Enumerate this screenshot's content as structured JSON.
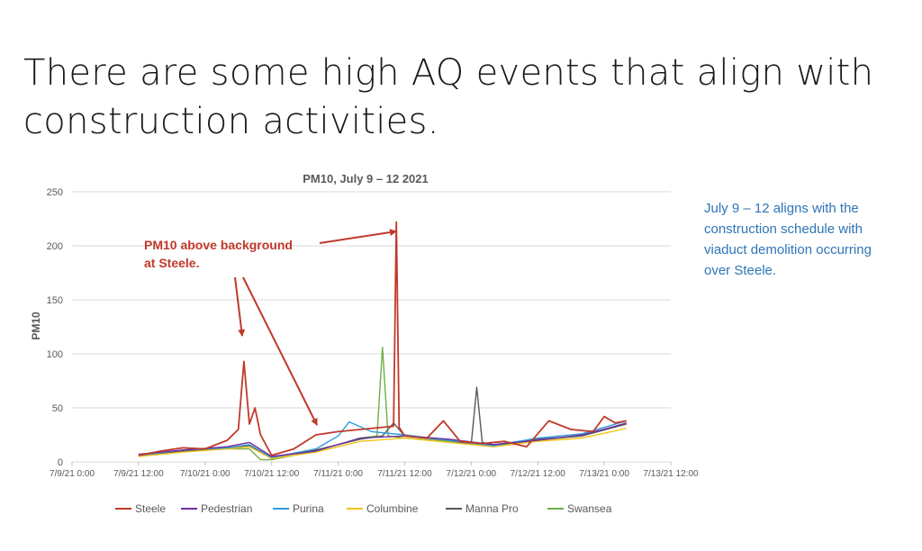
{
  "slide": {
    "title_lines": [
      "There are some high AQ events that align with",
      "construction activities."
    ],
    "note_lines": [
      "July 9 – 12 aligns with the",
      "construction schedule with",
      "viaduct demolition occurring",
      "over Steele."
    ],
    "note_color": "#2e75b6"
  },
  "annotation": {
    "lines": [
      "PM10 above background",
      "at Steele."
    ],
    "color": "#c0392b"
  },
  "chart_data": {
    "type": "line",
    "title": "PM10, July 9 – 12 2021",
    "ylabel": "PM10",
    "xlabel": "",
    "ylim": [
      0,
      250
    ],
    "yticks": [
      0,
      50,
      100,
      150,
      200,
      250
    ],
    "xlim": [
      "7/9/21 0:00",
      "7/13/21 12:00"
    ],
    "xticks": [
      "7/9/21 0:00",
      "7/9/21 12:00",
      "7/10/21 0:00",
      "7/10/21 12:00",
      "7/11/21 0:00",
      "7/11/21 12:00",
      "7/12/21 0:00",
      "7/12/21 12:00",
      "7/13/21 0:00",
      "7/13/21 12:00"
    ],
    "grid": true,
    "legend": "bottom",
    "series": [
      {
        "name": "Steele",
        "color": "#c0392b",
        "x": [
          "7/9/21 12:00",
          "7/9/21 16:00",
          "7/9/21 20:00",
          "7/10/21 0:00",
          "7/10/21 4:00",
          "7/10/21 6:00",
          "7/10/21 7:00",
          "7/10/21 8:00",
          "7/10/21 9:00",
          "7/10/21 10:00",
          "7/10/21 12:00",
          "7/10/21 16:00",
          "7/10/21 20:00",
          "7/11/21 0:00",
          "7/11/21 4:00",
          "7/11/21 8:00",
          "7/11/21 10:00",
          "7/11/21 10:30",
          "7/11/21 11:00",
          "7/11/21 12:00",
          "7/11/21 16:00",
          "7/11/21 19:00",
          "7/11/21 22:00",
          "7/12/21 2:00",
          "7/12/21 6:00",
          "7/12/21 10:00",
          "7/12/21 12:00",
          "7/12/21 14:00",
          "7/12/21 18:00",
          "7/12/21 22:00",
          "7/13/21 0:00",
          "7/13/21 2:00",
          "7/13/21 4:00"
        ],
        "y": [
          6,
          10,
          13,
          12,
          20,
          30,
          93,
          35,
          50,
          25,
          6,
          12,
          25,
          28,
          30,
          32,
          33,
          222,
          32,
          24,
          22,
          38,
          19,
          17,
          19,
          14,
          26,
          38,
          30,
          28,
          42,
          36,
          38
        ]
      },
      {
        "name": "Pedestrian",
        "color": "#7030a0",
        "x": [
          "7/9/21 12:00",
          "7/9/21 20:00",
          "7/10/21 4:00",
          "7/10/21 8:00",
          "7/10/21 12:00",
          "7/10/21 20:00",
          "7/11/21 4:00",
          "7/11/21 12:00",
          "7/11/21 20:00",
          "7/12/21 4:00",
          "7/12/21 12:00",
          "7/12/21 20:00",
          "7/13/21 2:00",
          "7/13/21 4:00"
        ],
        "y": [
          7,
          11,
          14,
          18,
          5,
          10,
          22,
          24,
          21,
          16,
          20,
          25,
          33,
          36
        ]
      },
      {
        "name": "Purina",
        "color": "#2e9cdb",
        "x": [
          "7/9/21 12:00",
          "7/9/21 20:00",
          "7/10/21 4:00",
          "7/10/21 8:00",
          "7/10/21 12:00",
          "7/10/21 20:00",
          "7/11/21 0:00",
          "7/11/21 2:00",
          "7/11/21 6:00",
          "7/11/21 12:00",
          "7/11/21 20:00",
          "7/12/21 4:00",
          "7/12/21 12:00",
          "7/12/21 20:00",
          "7/13/21 4:00"
        ],
        "y": [
          6,
          11,
          13,
          16,
          4,
          12,
          24,
          37,
          28,
          25,
          20,
          15,
          22,
          26,
          38
        ]
      },
      {
        "name": "Columbine",
        "color": "#f2c419",
        "x": [
          "7/9/21 12:00",
          "7/9/21 20:00",
          "7/10/21 4:00",
          "7/10/21 8:00",
          "7/10/21 12:00",
          "7/10/21 20:00",
          "7/11/21 4:00",
          "7/11/21 12:00",
          "7/11/21 20:00",
          "7/12/21 4:00",
          "7/12/21 12:00",
          "7/12/21 20:00",
          "7/13/21 4:00"
        ],
        "y": [
          5,
          9,
          12,
          14,
          3,
          9,
          19,
          22,
          18,
          14,
          19,
          22,
          31
        ]
      },
      {
        "name": "Manna Pro",
        "color": "#595959",
        "x": [
          "7/9/21 12:00",
          "7/9/21 20:00",
          "7/10/21 4:00",
          "7/10/21 8:00",
          "7/10/21 12:00",
          "7/10/21 20:00",
          "7/11/21 4:00",
          "7/11/21 8:00",
          "7/11/21 10:00",
          "7/11/21 12:00",
          "7/11/21 20:00",
          "7/12/21 0:00",
          "7/12/21 1:00",
          "7/12/21 2:00",
          "7/12/21 4:00",
          "7/12/21 12:00",
          "7/12/21 20:00",
          "7/13/21 4:00"
        ],
        "y": [
          6,
          10,
          13,
          15,
          4,
          11,
          21,
          24,
          36,
          24,
          20,
          16,
          69,
          18,
          16,
          21,
          24,
          35
        ]
      },
      {
        "name": "Swansea",
        "color": "#70ad47",
        "x": [
          "7/9/21 12:00",
          "7/9/21 20:00",
          "7/10/21 4:00",
          "7/10/21 8:00",
          "7/10/21 10:00",
          "7/10/21 12:00",
          "7/10/21 20:00",
          "7/11/21 4:00",
          "7/11/21 7:00",
          "7/11/21 8:00",
          "7/11/21 9:00",
          "7/11/21 12:00",
          "7/11/21 20:00",
          "7/12/21 4:00",
          "7/12/21 12:00",
          "7/12/21 20:00",
          "7/13/21 4:00"
        ],
        "y": [
          6,
          10,
          12,
          12,
          2,
          2,
          10,
          22,
          24,
          106,
          24,
          22,
          19,
          15,
          20,
          24,
          36
        ]
      }
    ]
  }
}
